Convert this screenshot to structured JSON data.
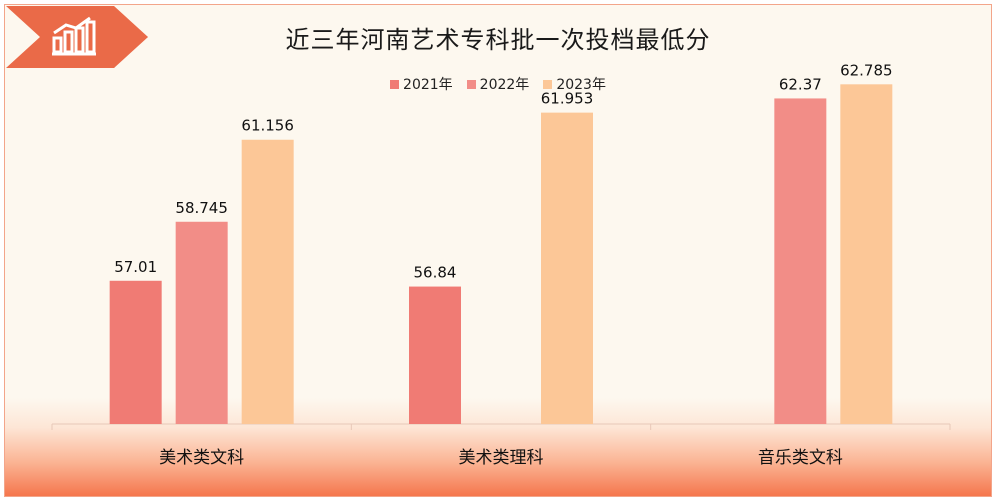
{
  "chart_data": {
    "type": "bar",
    "title": "近三年河南艺术专科批一次投档最低分",
    "categories": [
      "美术类文科",
      "美术类理科",
      "音乐类文科"
    ],
    "series": [
      {
        "name": "2021年",
        "color": "#f07b74",
        "values": [
          57.01,
          56.84,
          null
        ]
      },
      {
        "name": "2022年",
        "color": "#f28d87",
        "values": [
          58.745,
          null,
          62.37
        ]
      },
      {
        "name": "2023年",
        "color": "#fcc797",
        "values": [
          61.156,
          61.953,
          62.785
        ]
      }
    ],
    "value_labels": [
      [
        "57.01",
        "56.84",
        ""
      ],
      [
        "58.745",
        "",
        "62.37"
      ],
      [
        "61.156",
        "61.953",
        "62.785"
      ]
    ],
    "ylim": [
      52.8,
      63.5
    ],
    "legend": "top-center",
    "grid": false
  },
  "badge_icon": "bar-chart-trend-icon"
}
